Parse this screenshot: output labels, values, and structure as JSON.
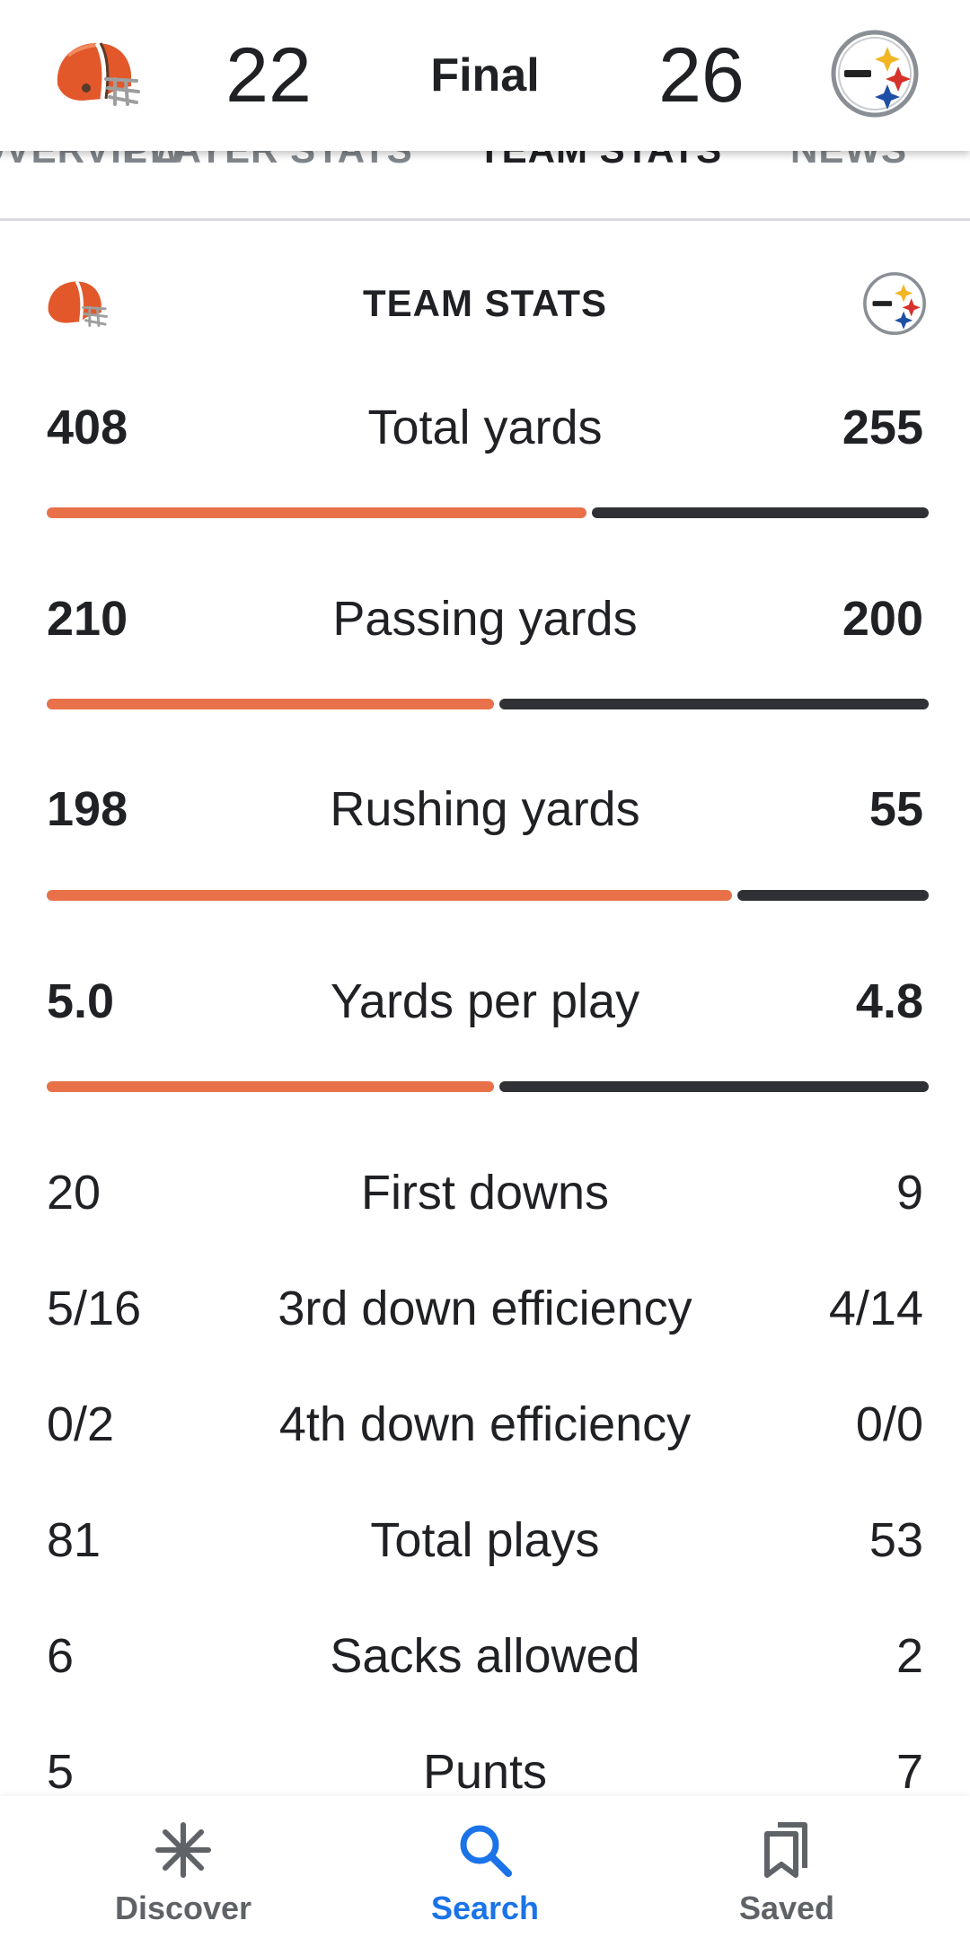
{
  "score_header": {
    "home_team_icon": "browns-helmet-icon",
    "home_score": "22",
    "status": "Final",
    "away_score": "26",
    "away_team_icon": "steelers-logo-icon"
  },
  "tabs": [
    {
      "label": "OVERVIEW",
      "active": false
    },
    {
      "label": "PLAYER STATS",
      "active": false
    },
    {
      "label": "TEAM STATS",
      "active": true
    },
    {
      "label": "NEWS",
      "active": false
    }
  ],
  "team_stats": {
    "title": "TEAM STATS",
    "home_color": "#e8714a",
    "away_color": "#303134",
    "bar_stats": [
      {
        "label": "Total yards",
        "home": "408",
        "away": "255",
        "home_fraction": 0.615
      },
      {
        "label": "Passing yards",
        "home": "210",
        "away": "200",
        "home_fraction": 0.51
      },
      {
        "label": "Rushing yards",
        "home": "198",
        "away": "55",
        "home_fraction": 0.78
      },
      {
        "label": "Yards per play",
        "home": "5.0",
        "away": "4.8",
        "home_fraction": 0.51
      }
    ],
    "rows": [
      {
        "label": "First downs",
        "home": "20",
        "away": "9"
      },
      {
        "label": "3rd down efficiency",
        "home": "5/16",
        "away": "4/14"
      },
      {
        "label": "4th down efficiency",
        "home": "0/2",
        "away": "0/0"
      },
      {
        "label": "Total plays",
        "home": "81",
        "away": "53"
      },
      {
        "label": "Sacks allowed",
        "home": "6",
        "away": "2"
      },
      {
        "label": "Punts",
        "home": "5",
        "away": "7"
      }
    ]
  },
  "bottom_nav": {
    "discover": {
      "label": "Discover",
      "icon": "asterisk-icon"
    },
    "search": {
      "label": "Search",
      "icon": "search-icon",
      "active": true
    },
    "saved": {
      "label": "Saved",
      "icon": "bookmarks-icon"
    }
  },
  "accent_color": "#1a73e8"
}
